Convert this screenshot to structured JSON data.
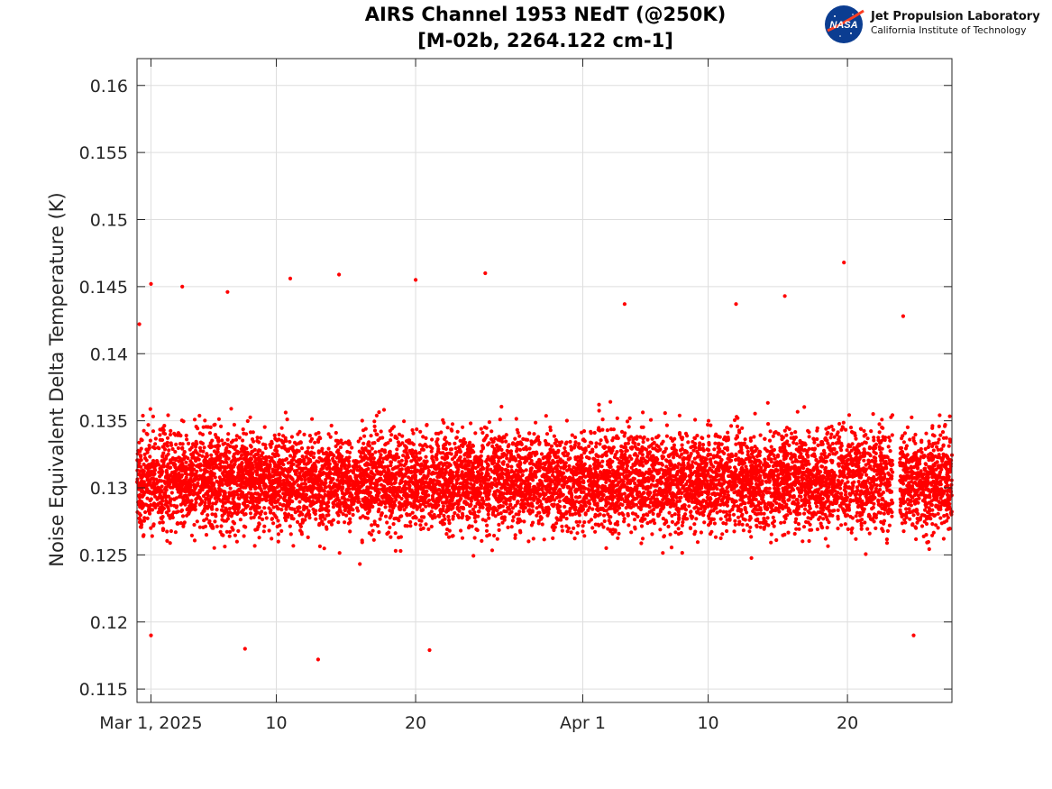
{
  "chart_data": {
    "type": "scatter",
    "title": "AIRS Channel 1953 NEdT (@250K)",
    "subtitle": "[M-02b, 2264.122 cm-1]",
    "xlabel": "",
    "ylabel": "Noise Equivalent Delta Temperature (K)",
    "x_range": [
      "2025-02-28T00:00",
      "2025-04-27T12:00"
    ],
    "ylim": [
      0.114,
      0.162
    ],
    "x_ticks": [
      {
        "date": "2025-03-01",
        "label": "Mar 1, 2025"
      },
      {
        "date": "2025-03-10",
        "label": "10"
      },
      {
        "date": "2025-03-20",
        "label": "20"
      },
      {
        "date": "2025-04-01",
        "label": "Apr 1"
      },
      {
        "date": "2025-04-10",
        "label": "10"
      },
      {
        "date": "2025-04-20",
        "label": "20"
      }
    ],
    "y_ticks": [
      0.115,
      0.12,
      0.125,
      0.13,
      0.135,
      0.14,
      0.145,
      0.15,
      0.155,
      0.16
    ],
    "y_tick_labels": [
      "0.115",
      "0.12",
      "0.125",
      "0.13",
      "0.135",
      "0.14",
      "0.145",
      "0.15",
      "0.155",
      "0.16"
    ],
    "grid": true,
    "series": [
      {
        "color": "#ff0000",
        "marker": "dot",
        "x_start": "2025-02-28T00:00",
        "x_end": "2025-04-27T12:00",
        "center": 0.1305,
        "spread_sd": 0.0035,
        "min": 0.1172,
        "max": 0.1468,
        "gap": [
          "2025-04-23T06:00",
          "2025-04-23T18:00"
        ],
        "points": [
          [
            "2025-02-28T04:00",
            0.1422
          ],
          [
            "2025-03-01T00:00",
            0.1452
          ],
          [
            "2025-03-03T06:00",
            0.145
          ],
          [
            "2025-03-06T12:00",
            0.1446
          ],
          [
            "2025-03-11T00:00",
            0.1456
          ],
          [
            "2025-03-14T12:00",
            0.1459
          ],
          [
            "2025-03-20T00:00",
            0.1455
          ],
          [
            "2025-03-25T00:00",
            0.146
          ],
          [
            "2025-04-19T18:00",
            0.1468
          ],
          [
            "2025-04-15T12:00",
            0.1443
          ],
          [
            "2025-04-04T00:00",
            0.1437
          ],
          [
            "2025-04-12T00:00",
            0.1437
          ],
          [
            "2025-04-24T00:00",
            0.1428
          ],
          [
            "2025-03-13T00:00",
            0.1172
          ],
          [
            "2025-03-07T18:00",
            0.118
          ],
          [
            "2025-03-21T00:00",
            0.1179
          ],
          [
            "2025-04-24T18:00",
            0.119
          ],
          [
            "2025-03-01T00:00",
            0.119
          ]
        ]
      }
    ]
  },
  "logo": {
    "badge_text": "NASA",
    "line1": "Jet Propulsion Laboratory",
    "line2": "California Institute of Technology"
  }
}
